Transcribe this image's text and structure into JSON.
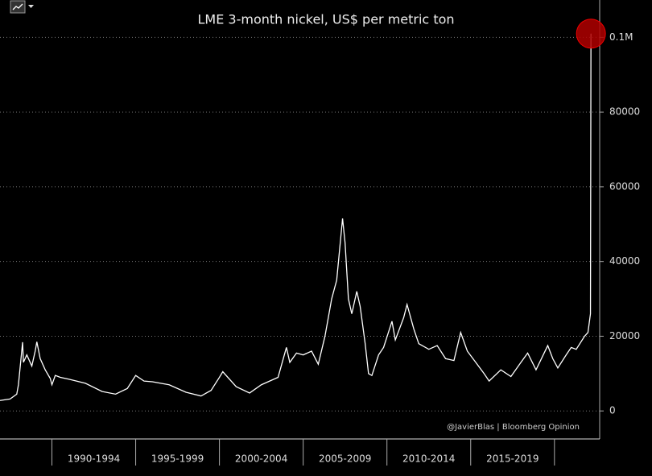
{
  "chart_data": {
    "type": "line",
    "title": "LME 3-month nickel, US$ per metric ton",
    "credit": "@JavierBlas | Bloomberg Opinion",
    "series": [
      {
        "name": "LME 3-month nickel",
        "color": "#ffffff",
        "marker_color": "#b00000",
        "x": [
          1986.9,
          1987.5,
          1987.9,
          1988.0,
          1988.25,
          1988.3,
          1988.5,
          1988.8,
          1989.0,
          1989.1,
          1989.3,
          1989.6,
          1989.9,
          1990.0,
          1990.2,
          1990.5,
          1991.0,
          1992.0,
          1993.0,
          1993.8,
          1994.5,
          1995.0,
          1995.5,
          1996.0,
          1997.0,
          1998.0,
          1998.9,
          1999.5,
          2000.0,
          2000.2,
          2001.0,
          2001.8,
          2002.5,
          2003.5,
          2004.0,
          2004.2,
          2004.6,
          2005.0,
          2005.5,
          2005.9,
          2006.3,
          2006.7,
          2007.0,
          2007.35,
          2007.5,
          2007.7,
          2007.9,
          2008.2,
          2008.4,
          2008.7,
          2008.9,
          2009.1,
          2009.5,
          2009.8,
          2010.3,
          2010.5,
          2011.0,
          2011.2,
          2011.6,
          2011.9,
          2012.5,
          2013.0,
          2013.5,
          2014.0,
          2014.4,
          2014.8,
          2015.3,
          2015.8,
          2016.1,
          2016.8,
          2017.4,
          2018.0,
          2018.4,
          2018.9,
          2019.6,
          2019.9,
          2020.2,
          2020.7,
          2021.0,
          2021.3,
          2021.8,
          2022.0,
          2022.15,
          2022.18
        ],
        "values": [
          2800,
          3200,
          4500,
          7000,
          18400,
          13000,
          15000,
          12000,
          16000,
          18500,
          14000,
          11000,
          8700,
          7000,
          9500,
          9000,
          8500,
          7400,
          5200,
          4500,
          6000,
          9500,
          8000,
          7800,
          7000,
          5000,
          4000,
          5500,
          9000,
          10500,
          6500,
          4800,
          7000,
          9000,
          17000,
          13000,
          15500,
          15000,
          16000,
          12500,
          20000,
          30000,
          35000,
          51500,
          45000,
          30000,
          26000,
          32000,
          28000,
          18000,
          10000,
          9500,
          15000,
          17000,
          24000,
          19000,
          25000,
          28500,
          22000,
          18000,
          16500,
          17500,
          14000,
          13500,
          21000,
          16000,
          13000,
          10000,
          8000,
          11000,
          9200,
          13000,
          15500,
          11000,
          17500,
          14000,
          11500,
          15000,
          17000,
          16500,
          20000,
          21000,
          26000,
          101000
        ]
      }
    ],
    "xlim": [
      1986.9,
      2022.7
    ],
    "xticks": [
      {
        "value": 1990,
        "label": "1990-1994"
      },
      {
        "value": 1995,
        "label": "1995-1999"
      },
      {
        "value": 2000,
        "label": "2000-2004"
      },
      {
        "value": 2005,
        "label": "2005-2009"
      },
      {
        "value": 2010,
        "label": "2010-2014"
      },
      {
        "value": 2015,
        "label": "2015-2019"
      },
      {
        "value": 2020,
        "label": null
      }
    ],
    "ylim": [
      -7500,
      110000
    ],
    "yticks": [
      0,
      20000,
      40000,
      60000,
      80000,
      {
        "value": 100000,
        "label": "0.1M"
      }
    ],
    "grid": true
  }
}
